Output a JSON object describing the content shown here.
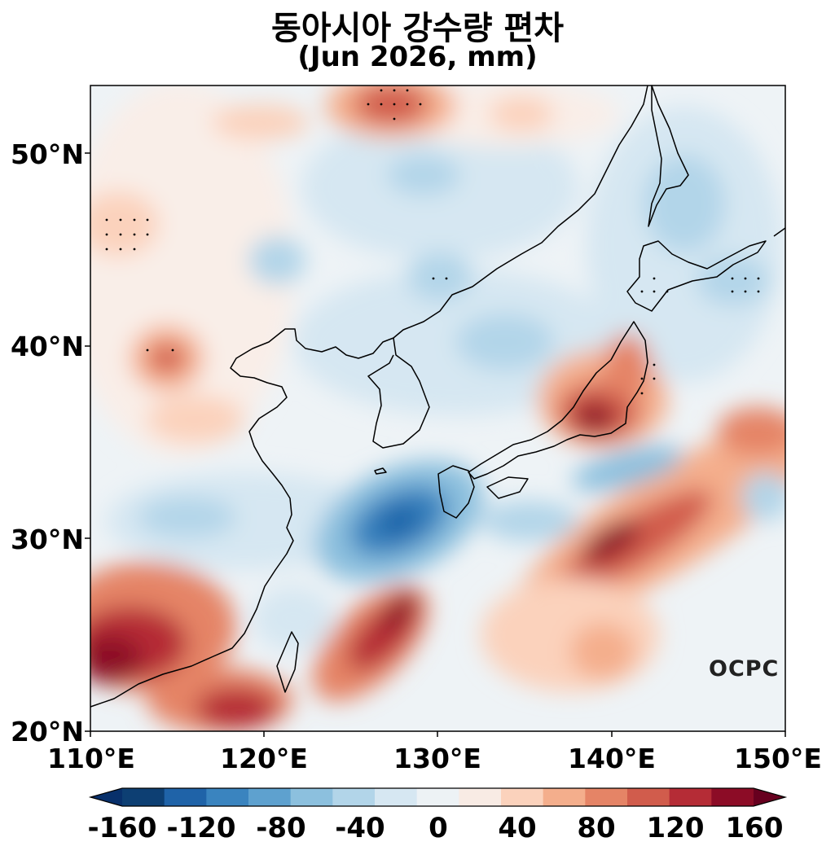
{
  "title": "동아시아 강수량 편차",
  "subtitle": "(Jun 2026, mm)",
  "logo_text": "OCPC",
  "map": {
    "extent_lon": [
      110,
      150
    ],
    "extent_lat": [
      20,
      53.5
    ],
    "lat_ticks": [
      "20°N",
      "30°N",
      "40°N",
      "50°N"
    ],
    "lon_ticks": [
      "110°E",
      "120°E",
      "130°E",
      "140°E",
      "150°E"
    ],
    "colormap": "RdBu_r"
  },
  "colorbar": {
    "ticks": [
      "-160",
      "-120",
      "-80",
      "-40",
      "0",
      "40",
      "80",
      "120",
      "160"
    ],
    "colors": [
      "#0d3f73",
      "#1f63a8",
      "#3a84bf",
      "#5ea1cf",
      "#8cc0de",
      "#b2d5e9",
      "#d6e7f2",
      "#edf2f5",
      "#f8ebe4",
      "#fbd2bc",
      "#f4ae8c",
      "#e58466",
      "#d15c4c",
      "#b52c36",
      "#8c0c26"
    ],
    "under_color": "#08306b",
    "over_color": "#67001f"
  }
}
